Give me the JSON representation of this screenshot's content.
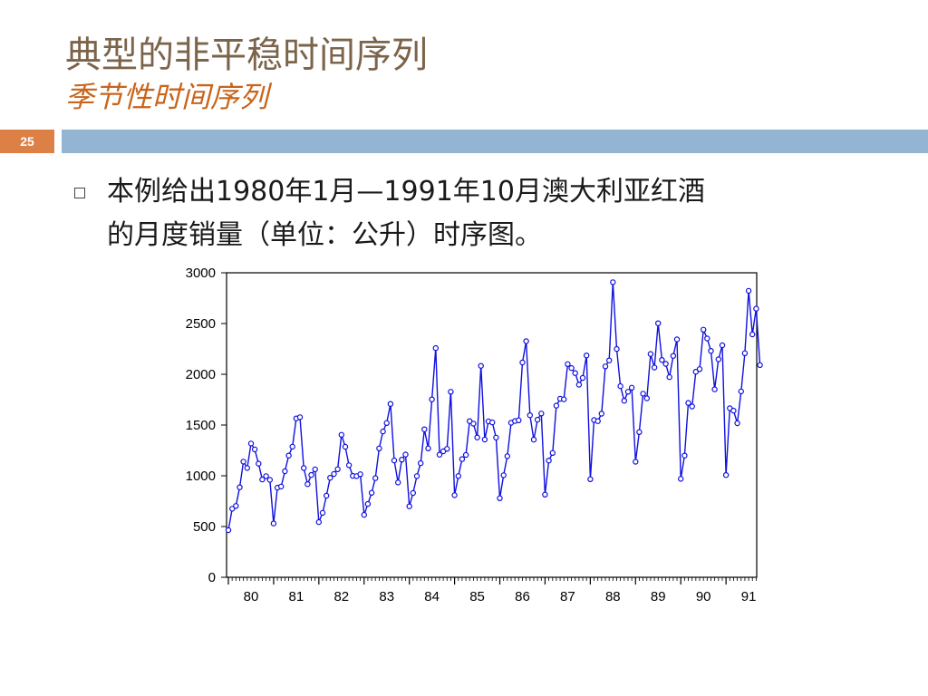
{
  "slide": {
    "title": "典型的非平稳时间序列",
    "subtitle": "季节性时间序列",
    "page_number": "25",
    "body_line1": "本例给出1980年1月—1991年10月澳大利亚红酒",
    "body_line2": "的月度销量（单位：公升）时序图。"
  },
  "colors": {
    "title": "#7b6449",
    "subtitle": "#c9641b",
    "number_bar": "#dd8046",
    "band": "#93b4d3",
    "series": "#1010e0"
  },
  "chart_data": {
    "type": "line",
    "title": "",
    "xlabel": "",
    "ylabel": "",
    "ylim": [
      0,
      3000
    ],
    "yticks": [
      0,
      500,
      1000,
      1500,
      2000,
      2500,
      3000
    ],
    "ytick_labels": [
      "0",
      "500",
      "1000",
      "1500",
      "2000",
      "2500",
      "3000"
    ],
    "xticks": [
      "80",
      "81",
      "82",
      "83",
      "84",
      "85",
      "86",
      "87",
      "88",
      "89",
      "90",
      "91"
    ],
    "x_start": "1980-01",
    "x_end": "1991-10",
    "marker": "circle",
    "grid": false,
    "series": [
      {
        "values": [
          464,
          675,
          703,
          887,
          1139,
          1077,
          1318,
          1260,
          1120,
          963,
          996,
          960,
          530,
          883,
          894,
          1045,
          1199,
          1287,
          1565,
          1577,
          1076,
          918,
          1008,
          1063,
          544,
          635,
          804,
          980,
          1018,
          1064,
          1404,
          1286,
          1104,
          999,
          996,
          1015,
          615,
          722,
          832,
          977,
          1270,
          1437,
          1520,
          1708,
          1151,
          934,
          1159,
          1209,
          699,
          830,
          996,
          1124,
          1458,
          1270,
          1753,
          2258,
          1208,
          1241,
          1265,
          1828,
          809,
          997,
          1164,
          1205,
          1538,
          1513,
          1378,
          2083,
          1357,
          1536,
          1526,
          1376,
          779,
          1005,
          1193,
          1522,
          1539,
          1546,
          2116,
          2326,
          1596,
          1356,
          1553,
          1613,
          814,
          1150,
          1225,
          1691,
          1759,
          1754,
          2100,
          2062,
          2012,
          1897,
          1964,
          2186,
          966,
          1549,
          1538,
          1612,
          2078,
          2137,
          2907,
          2249,
          1883,
          1739,
          1828,
          1868,
          1138,
          1430,
          1809,
          1763,
          2200,
          2067,
          2503,
          2141,
          2103,
          1972,
          2181,
          2344,
          970,
          1199,
          1718,
          1683,
          2025,
          2051,
          2439,
          2353,
          2230,
          1852,
          2147,
          2286,
          1007,
          1665,
          1642,
          1518,
          1831,
          2207,
          2822,
          2393,
          2646,
          2090
        ]
      }
    ]
  }
}
